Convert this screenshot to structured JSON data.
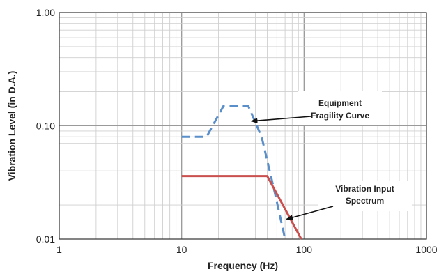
{
  "chart_data": {
    "type": "line",
    "title": "",
    "xlabel": "Frequency (Hz)",
    "ylabel": "Vibration Level (in D.A.)",
    "xscale": "log",
    "yscale": "log",
    "xlim": [
      1,
      1000
    ],
    "ylim": [
      0.01,
      1
    ],
    "xticks": [
      "1",
      "10",
      "100",
      "1000"
    ],
    "yticks": [
      "0.01",
      "0.10",
      "1.00"
    ],
    "grid": true,
    "series": [
      {
        "name": "Equipment Fragility Curve",
        "style": "dashed",
        "color": "#5b8fc9",
        "x": [
          10,
          16,
          22,
          35,
          45,
          58,
          70
        ],
        "y": [
          0.08,
          0.08,
          0.15,
          0.15,
          0.08,
          0.025,
          0.01
        ]
      },
      {
        "name": "Vibration Input Spectrum",
        "style": "solid",
        "color": "#c9504e",
        "x": [
          10,
          50,
          95
        ],
        "y": [
          0.036,
          0.036,
          0.01
        ]
      }
    ],
    "annotations": [
      {
        "lines": [
          "Equipment",
          "Fragility Curve"
        ],
        "points_to": [
          37,
          0.11
        ]
      },
      {
        "lines": [
          "Vibration Input",
          "Spectrum"
        ],
        "points_to": [
          72,
          0.015
        ]
      }
    ]
  }
}
